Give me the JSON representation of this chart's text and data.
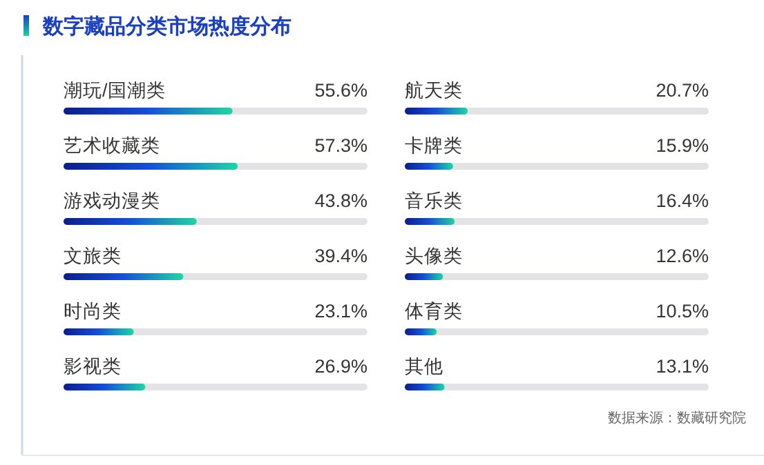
{
  "chart_data": [
    {
      "type": "bar",
      "orientation": "horizontal",
      "title": "数字藏品分类市场热度分布",
      "categories": [
        "潮玩/国潮类",
        "艺术收藏类",
        "游戏动漫类",
        "文旅类",
        "时尚类",
        "影视类"
      ],
      "xlim": [
        0,
        100
      ],
      "series": [
        {
          "color": "#0c1d8e",
          "values": [
            55.6,
            57.3,
            43.8,
            39.4,
            23.1,
            26.9
          ],
          "value_labels": [
            "55.6%",
            "57.3%",
            "43.8%",
            "39.4%",
            "23.1%",
            "26.9%"
          ]
        }
      ]
    },
    {
      "type": "bar",
      "orientation": "horizontal",
      "categories": [
        "航天类",
        "卡牌类",
        "音乐类",
        "头像类",
        "体育类",
        "其他"
      ],
      "xlim": [
        0,
        100
      ],
      "annotations": [
        "数据来源：数藏研究院"
      ],
      "series": [
        {
          "color": "#0c1d8e",
          "values": [
            20.7,
            15.9,
            16.4,
            12.6,
            10.5,
            13.1
          ],
          "value_labels": [
            "20.7%",
            "15.9%",
            "16.4%",
            "12.6%",
            "10.5%",
            "13.1%"
          ]
        }
      ]
    }
  ]
}
